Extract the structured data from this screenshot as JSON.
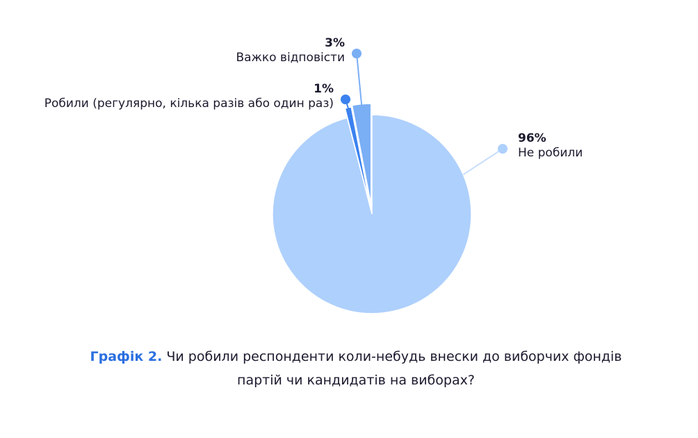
{
  "chart_data": {
    "type": "pie",
    "categories": [
      "Не робили",
      "Робили (регулярно, кілька разів або один раз)",
      "Важко відповісти"
    ],
    "values": [
      96,
      1,
      3
    ],
    "value_labels": [
      "96%",
      "1%",
      "3%"
    ],
    "colors": [
      "#aed0fc",
      "#3b82f0",
      "#7aaef5"
    ],
    "caption_label": "Графік 2.",
    "caption": "Чи робили респонденти коли-небудь внески до виборчих фондів партій чи кандидатів на виборах?"
  }
}
